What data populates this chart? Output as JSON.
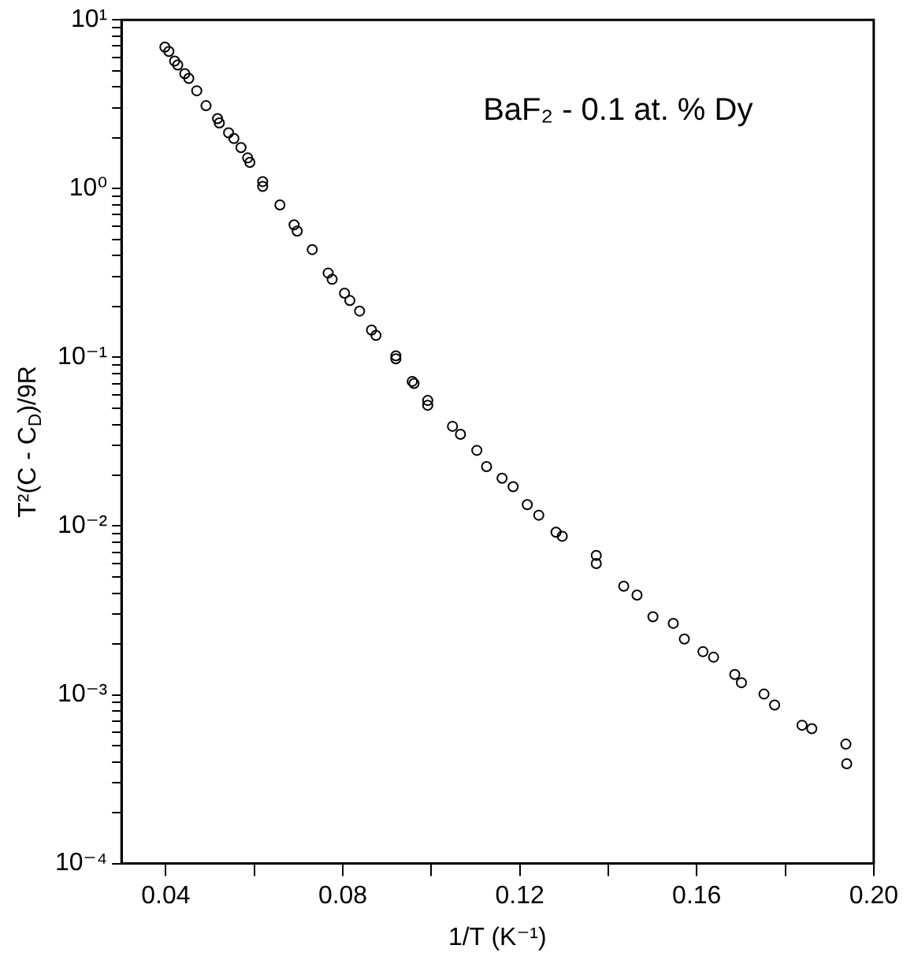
{
  "chart_data": {
    "type": "scatter",
    "xlabel": "1/T (K⁻¹)",
    "ylabel": "T²(C - C$_{D}$)/9R",
    "annotations": [
      "BaF₂ - 0.1 at. % Dy"
    ],
    "xlim": [
      0.03,
      0.2
    ],
    "xticks": [
      0.04,
      {
        "value": 0.06,
        "label": null
      },
      0.08,
      {
        "value": 0.1,
        "label": null
      },
      0.12,
      {
        "value": 0.14,
        "label": null
      },
      0.16,
      {
        "value": 0.18,
        "label": null
      },
      {
        "value": 0.2,
        "label": "0.20"
      }
    ],
    "ylim": [
      0.0001,
      10
    ],
    "log": "y",
    "yticks": [
      {
        "value": 0.0001,
        "label": "10⁻⁴"
      },
      {
        "value": 0.0002,
        "label": null
      },
      {
        "value": 0.0003,
        "label": null
      },
      {
        "value": 0.0004,
        "label": null
      },
      {
        "value": 0.0005,
        "label": null
      },
      {
        "value": 0.0006,
        "label": null
      },
      {
        "value": 0.0007,
        "label": null
      },
      {
        "value": 0.0008,
        "label": null
      },
      {
        "value": 0.0009,
        "label": null
      },
      {
        "value": 0.001,
        "label": "10⁻³"
      },
      {
        "value": 0.002,
        "label": null
      },
      {
        "value": 0.003,
        "label": null
      },
      {
        "value": 0.004,
        "label": null
      },
      {
        "value": 0.005,
        "label": null
      },
      {
        "value": 0.006,
        "label": null
      },
      {
        "value": 0.007,
        "label": null
      },
      {
        "value": 0.008,
        "label": null
      },
      {
        "value": 0.009,
        "label": null
      },
      {
        "value": 0.01,
        "label": "10⁻²"
      },
      {
        "value": 0.02,
        "label": null
      },
      {
        "value": 0.03,
        "label": null
      },
      {
        "value": 0.04,
        "label": null
      },
      {
        "value": 0.05,
        "label": null
      },
      {
        "value": 0.06,
        "label": null
      },
      {
        "value": 0.07,
        "label": null
      },
      {
        "value": 0.08,
        "label": null
      },
      {
        "value": 0.09,
        "label": null
      },
      {
        "value": 0.1,
        "label": "10⁻¹"
      },
      {
        "value": 0.2,
        "label": null
      },
      {
        "value": 0.3,
        "label": null
      },
      {
        "value": 0.4,
        "label": null
      },
      {
        "value": 0.5,
        "label": null
      },
      {
        "value": 0.6,
        "label": null
      },
      {
        "value": 0.7,
        "label": null
      },
      {
        "value": 0.8,
        "label": null
      },
      {
        "value": 0.9,
        "label": null
      },
      {
        "value": 1,
        "label": "10⁰"
      },
      {
        "value": 2,
        "label": null
      },
      {
        "value": 3,
        "label": null
      },
      {
        "value": 4,
        "label": null
      },
      {
        "value": 5,
        "label": null
      },
      {
        "value": 6,
        "label": null
      },
      {
        "value": 7,
        "label": null
      },
      {
        "value": 8,
        "label": null
      },
      {
        "value": 9,
        "label": null
      },
      {
        "value": 10,
        "label": "10¹"
      }
    ],
    "grid": false,
    "legend": false,
    "marker": "circle",
    "series": [
      {
        "color": "#000000",
        "x": [
          0.0398,
          0.0407,
          0.042,
          0.0427,
          0.0443,
          0.0452,
          0.047,
          0.0491,
          0.0517,
          0.0521,
          0.0542,
          0.0554,
          0.057,
          0.0585,
          0.059,
          0.0619,
          0.0619,
          0.0658,
          0.069,
          0.0697,
          0.0731,
          0.0767,
          0.0776,
          0.0804,
          0.0816,
          0.0838,
          0.0865,
          0.0875,
          0.092,
          0.092,
          0.0957,
          0.0961,
          0.0992,
          0.0992,
          0.1048,
          0.1066,
          0.1103,
          0.1125,
          0.116,
          0.1185,
          0.1217,
          0.1243,
          0.1282,
          0.1296,
          0.1373,
          0.1373,
          0.1435,
          0.1465,
          0.1501,
          0.1547,
          0.1572,
          0.1614,
          0.1638,
          0.1686,
          0.1701,
          0.1752,
          0.1776,
          0.1838,
          0.186,
          0.1937,
          0.1939
        ],
        "values": [
          6.9,
          6.5,
          5.7,
          5.4,
          4.8,
          4.5,
          3.8,
          3.1,
          2.6,
          2.45,
          2.14,
          1.98,
          1.75,
          1.52,
          1.43,
          1.1,
          1.03,
          0.8,
          0.61,
          0.56,
          0.435,
          0.316,
          0.29,
          0.24,
          0.217,
          0.188,
          0.145,
          0.135,
          0.102,
          0.098,
          0.072,
          0.07,
          0.0555,
          0.052,
          0.039,
          0.035,
          0.0281,
          0.0225,
          0.0192,
          0.0171,
          0.0134,
          0.0116,
          0.0092,
          0.0087,
          0.0067,
          0.006,
          0.0044,
          0.0039,
          0.0029,
          0.00265,
          0.00214,
          0.0018,
          0.00167,
          0.00132,
          0.00118,
          0.00101,
          0.00087,
          0.00066,
          0.00063,
          0.00051,
          0.00039
        ]
      }
    ]
  }
}
